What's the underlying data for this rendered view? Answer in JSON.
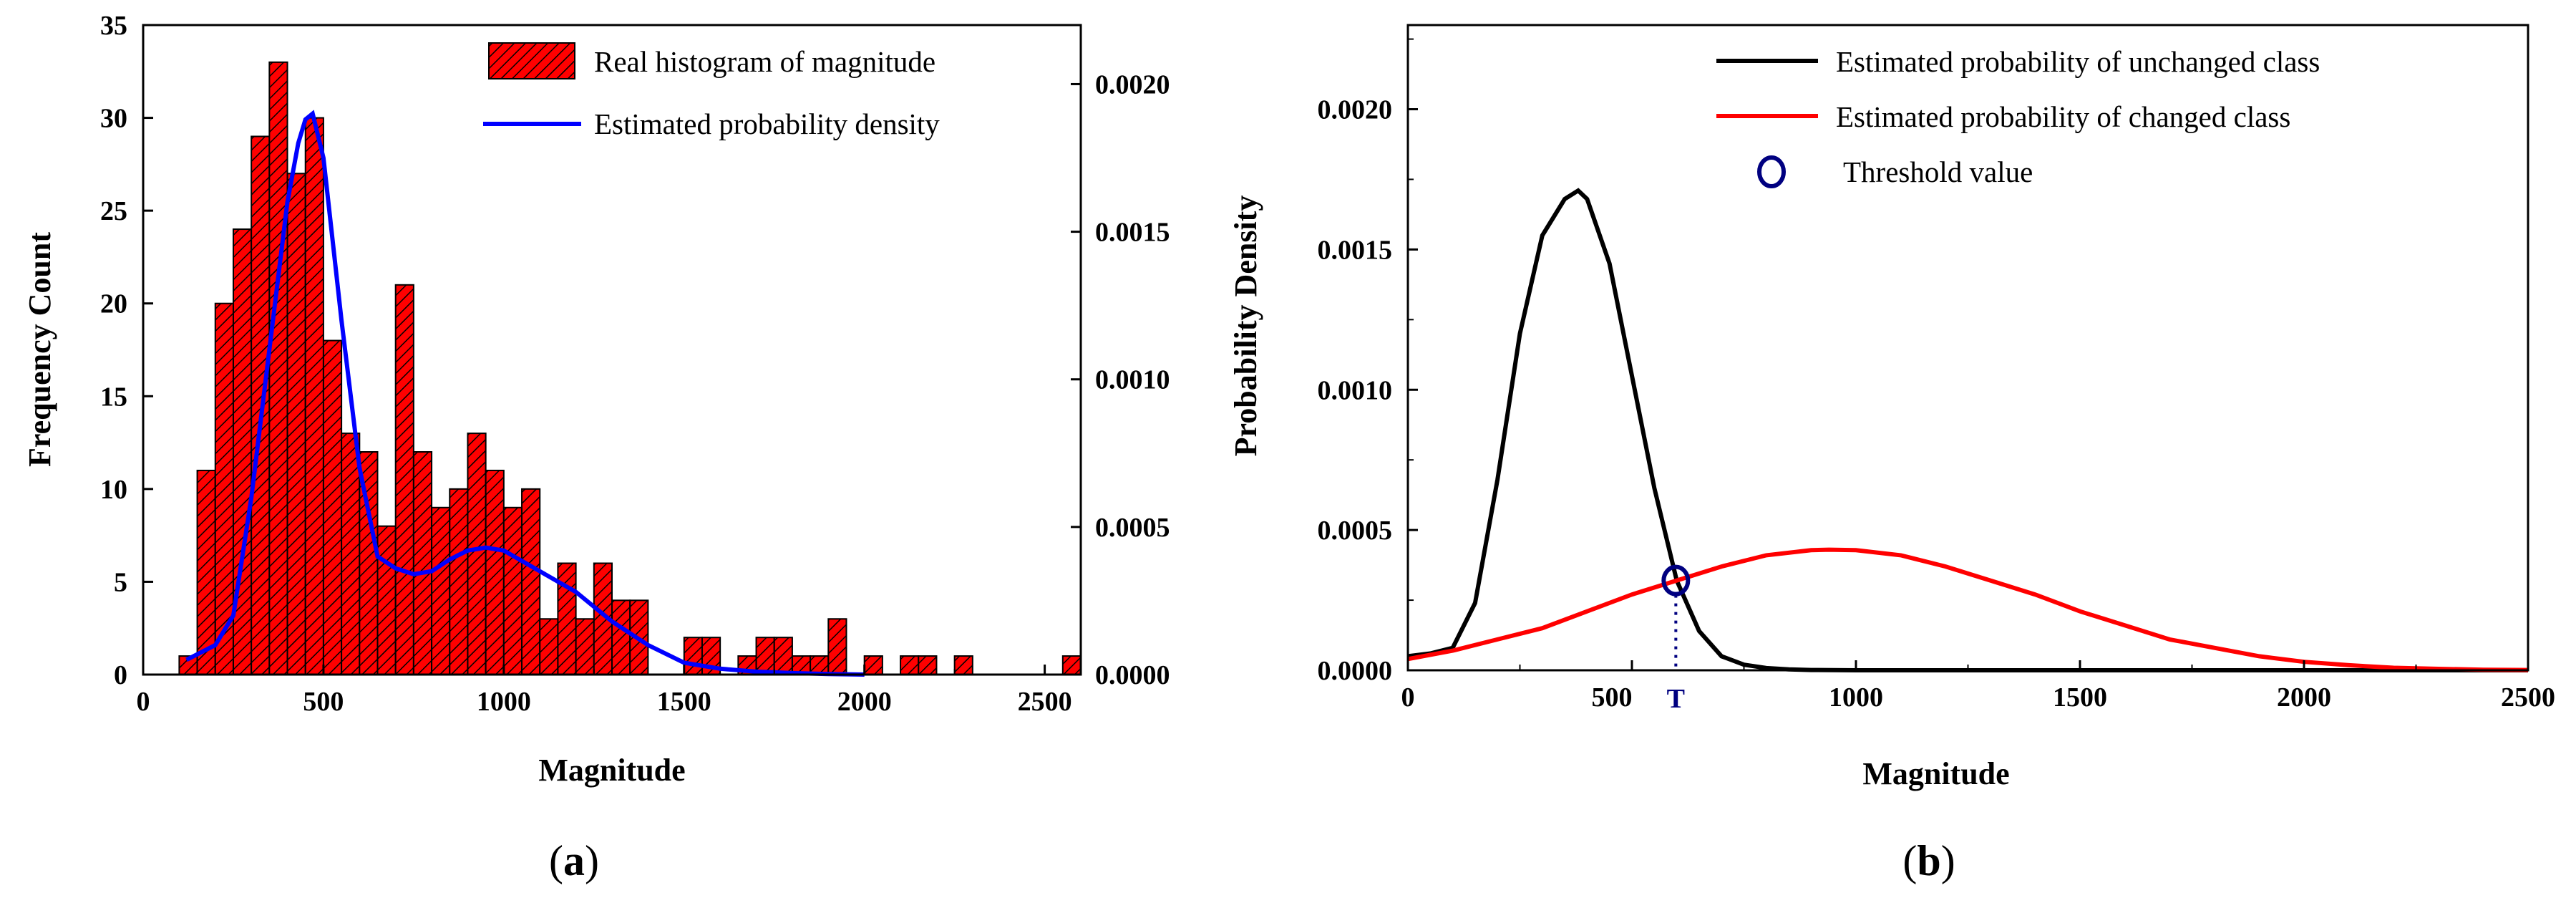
{
  "chart_data": [
    {
      "type": "bar",
      "panel": "a",
      "caption": "a",
      "xlabel": "Magnitude",
      "ylabel": "Frequency Count",
      "xlim": [
        0,
        2600
      ],
      "ylim": [
        0,
        35
      ],
      "y2lim": [
        0,
        0.0022
      ],
      "x_ticks": [
        0,
        500,
        1000,
        1500,
        2000,
        2500
      ],
      "y_ticks": [
        0,
        5,
        10,
        15,
        20,
        25,
        30,
        35
      ],
      "y2_ticks": [
        "0.0000",
        "0.0005",
        "0.0010",
        "0.0015",
        "0.0020"
      ],
      "legend_position": "top-right",
      "colors": {
        "bars": "#ff0000",
        "hatch": "#000000",
        "density": "#0000ff"
      },
      "series": [
        {
          "name": "Real histogram of magnitude",
          "kind": "histogram",
          "bin_width": 50,
          "bin_start": [
            100,
            150,
            200,
            250,
            300,
            350,
            400,
            450,
            500,
            550,
            600,
            650,
            700,
            750,
            800,
            850,
            900,
            950,
            1000,
            1050,
            1100,
            1150,
            1200,
            1250,
            1300,
            1350,
            1400,
            1450,
            1500,
            1550,
            1600,
            1650,
            1700,
            1750,
            1800,
            1850,
            1900,
            1950,
            2000,
            2050,
            2100,
            2150,
            2200,
            2250,
            2300,
            2350,
            2400,
            2450,
            2500,
            2550
          ],
          "counts": [
            1,
            11,
            20,
            24,
            29,
            33,
            27,
            30,
            18,
            13,
            12,
            8,
            21,
            12,
            9,
            10,
            13,
            11,
            9,
            10,
            3,
            6,
            3,
            6,
            4,
            4,
            0,
            0,
            2,
            2,
            0,
            1,
            2,
            2,
            1,
            1,
            3,
            0,
            1,
            0,
            1,
            1,
            0,
            1,
            0,
            0,
            0,
            0,
            0,
            1
          ]
        },
        {
          "name": "Estimated probability density",
          "kind": "line",
          "axis": "right",
          "x": [
            120,
            200,
            250,
            300,
            350,
            400,
            430,
            450,
            470,
            500,
            550,
            600,
            650,
            700,
            750,
            800,
            850,
            900,
            950,
            1000,
            1100,
            1200,
            1300,
            1400,
            1500,
            1600,
            1700,
            1800,
            1900,
            2000
          ],
          "y": [
            5e-05,
            0.0001,
            0.0002,
            0.0006,
            0.0011,
            0.0016,
            0.0018,
            0.00188,
            0.0019,
            0.00175,
            0.0012,
            0.0007,
            0.0004,
            0.00036,
            0.00034,
            0.00035,
            0.00039,
            0.00042,
            0.00043,
            0.00042,
            0.00035,
            0.00028,
            0.00018,
            0.0001,
            4e-05,
            2e-05,
            1e-05,
            5e-06,
            2e-06,
            0.0
          ]
        }
      ]
    },
    {
      "type": "line",
      "panel": "b",
      "caption": "b",
      "xlabel": "Magnitude",
      "ylabel": "Probability Density",
      "xlim": [
        0,
        2500
      ],
      "ylim": [
        0,
        0.0023
      ],
      "x_ticks": [
        0,
        500,
        1000,
        1500,
        2000,
        2500
      ],
      "y_ticks": [
        "0.0000",
        "0.0005",
        "0.0010",
        "0.0015",
        "0.0020"
      ],
      "legend_position": "top-right",
      "threshold": {
        "x": 598,
        "y": 0.00032,
        "label": "T",
        "color": "#000080"
      },
      "series": [
        {
          "name": "Estimated probability of unchanged class",
          "color": "#000000",
          "x": [
            0,
            50,
            100,
            150,
            200,
            250,
            300,
            350,
            380,
            400,
            450,
            500,
            550,
            600,
            650,
            700,
            750,
            800,
            850,
            900,
            1000,
            1100,
            1200,
            1500,
            2000,
            2500
          ],
          "y": [
            5e-05,
            6e-05,
            8e-05,
            0.00024,
            0.00068,
            0.0012,
            0.00155,
            0.00168,
            0.00171,
            0.00168,
            0.00145,
            0.00105,
            0.00065,
            0.00032,
            0.00014,
            5e-05,
            2e-05,
            8e-06,
            3e-06,
            1e-06,
            0.0,
            0.0,
            0.0,
            0.0,
            0.0,
            0.0
          ]
        },
        {
          "name": "Estimated probability of changed class",
          "color": "#ff0000",
          "x": [
            0,
            100,
            200,
            300,
            400,
            500,
            600,
            700,
            800,
            900,
            940,
            1000,
            1100,
            1200,
            1300,
            1400,
            1500,
            1600,
            1700,
            1800,
            1900,
            2000,
            2100,
            2200,
            2300,
            2400,
            2500
          ],
          "y": [
            4e-05,
            7e-05,
            0.00011,
            0.00015,
            0.00021,
            0.00027,
            0.00032,
            0.00037,
            0.00041,
            0.000428,
            0.00043,
            0.000428,
            0.00041,
            0.00037,
            0.00032,
            0.00027,
            0.00021,
            0.00016,
            0.00011,
            8e-05,
            5e-05,
            3e-05,
            1.8e-05,
            9e-06,
            5e-06,
            2e-06,
            1e-06
          ]
        },
        {
          "name": "Threshold value",
          "kind": "marker",
          "color": "#000080"
        }
      ]
    }
  ]
}
